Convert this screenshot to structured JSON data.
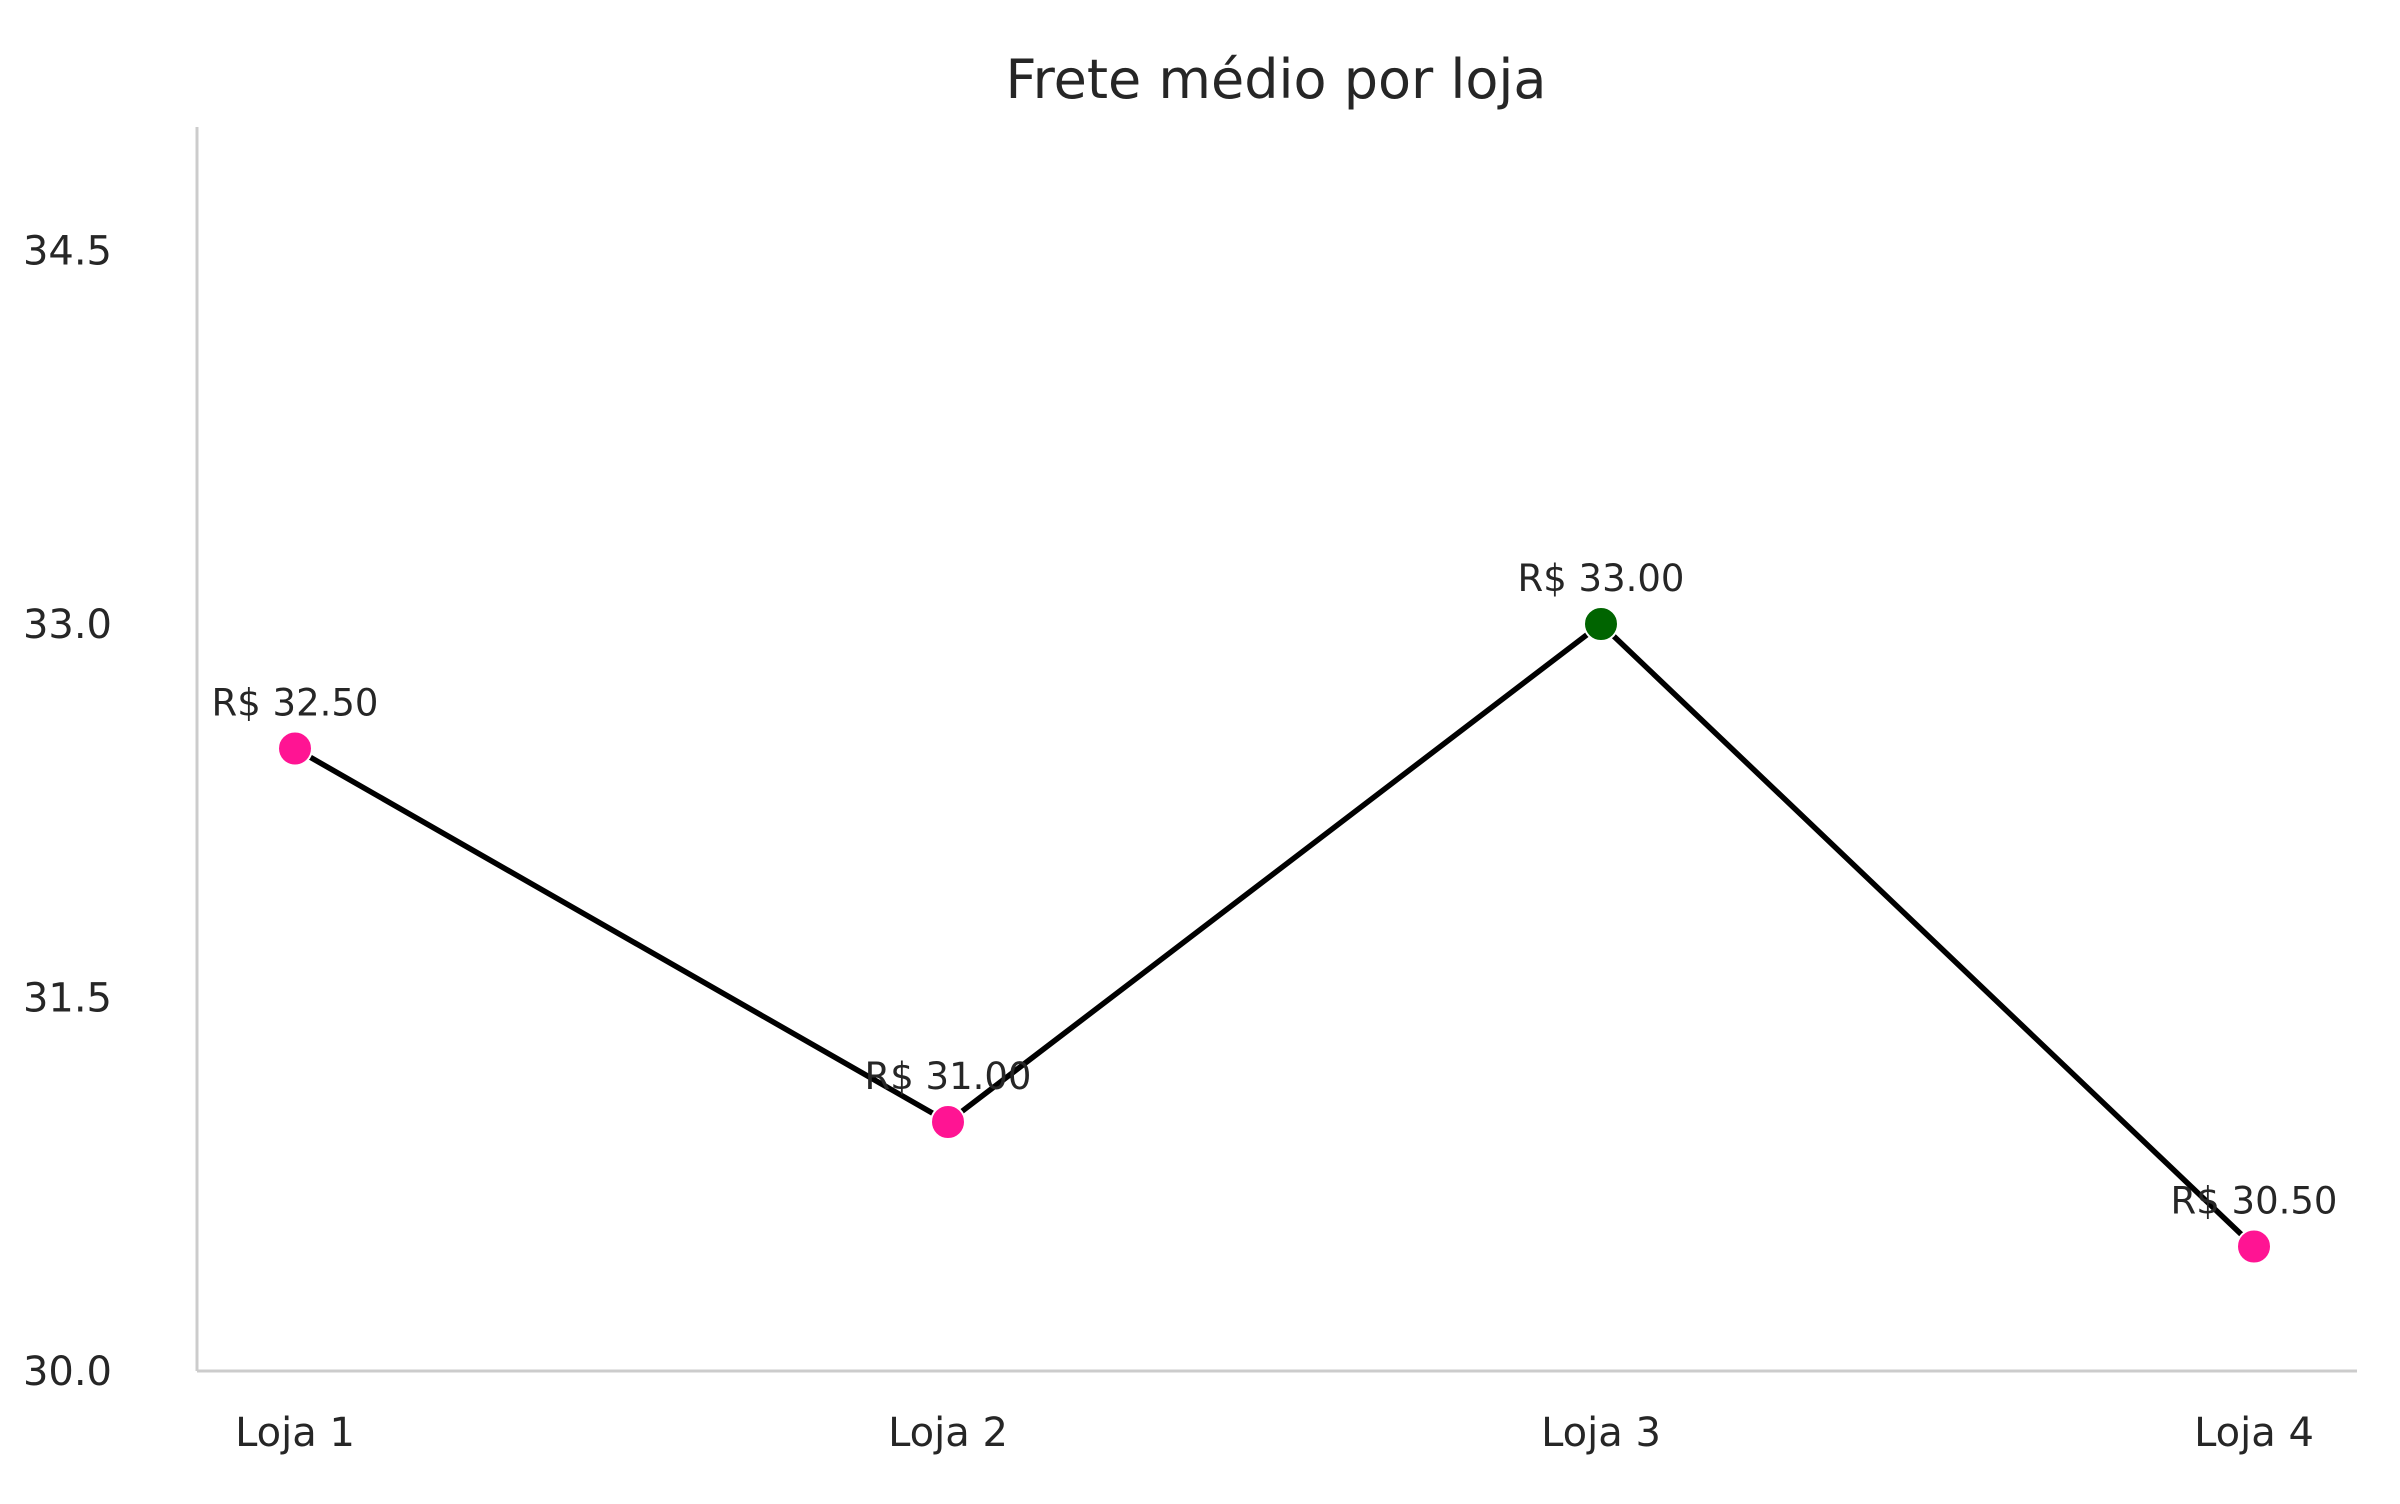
{
  "chart_data": {
    "type": "line",
    "title": "Frete médio por loja",
    "xlabel": "",
    "ylabel": "",
    "categories": [
      "Loja 1",
      "Loja 2",
      "Loja 3",
      "Loja 4"
    ],
    "values": [
      32.5,
      31.0,
      33.0,
      30.5
    ],
    "data_labels": [
      "R$ 32.50",
      "R$ 31.00",
      "R$ 33.00",
      "R$ 30.50"
    ],
    "ylim": [
      30.0,
      35.0
    ],
    "yticks": [
      30.0,
      31.5,
      33.0,
      34.5
    ],
    "ytick_labels": [
      "30.0",
      "31.5",
      "33.0",
      "34.5"
    ],
    "grid": false,
    "legend": "none",
    "line_color": "#000000",
    "marker_colors": [
      "#ff1493",
      "#ff1493",
      "#006400",
      "#ff1493"
    ],
    "highlight_max_color": "#006400",
    "default_marker_color": "#ff1493"
  }
}
